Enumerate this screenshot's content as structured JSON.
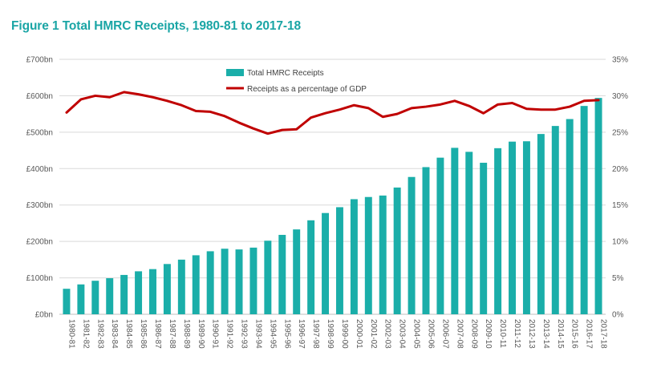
{
  "title": "Figure 1 Total HMRC Receipts, 1980-81 to 2017-18",
  "colors": {
    "title": "#1aa5a5",
    "bars": "#1aaea9",
    "line": "#c00000",
    "grid": "#d9d9d9",
    "axis_text": "#595959"
  },
  "chart_data": {
    "type": "bar",
    "title": "Figure 1 Total HMRC Receipts, 1980-81 to 2017-18",
    "xlabel": "",
    "ylabel": "",
    "categories": [
      "1980-81",
      "1981-82",
      "1982-83",
      "1983-84",
      "1984-85",
      "1985-86",
      "1986-87",
      "1987-88",
      "1988-89",
      "1989-90",
      "1990-91",
      "1991-92",
      "1992-93",
      "1993-94",
      "1994-95",
      "1995-96",
      "1996-97",
      "1997-98",
      "1998-99",
      "1999-00",
      "2000-01",
      "2001-02",
      "2002-03",
      "2003-04",
      "2004-05",
      "2005-06",
      "2006-07",
      "2007-08",
      "2008-09",
      "2009-10",
      "2010-11",
      "2011-12",
      "2012-13",
      "2013-14",
      "2014-15",
      "2015-16",
      "2016-17",
      "2017-18"
    ],
    "y_ticks": [
      "£0bn",
      "£100bn",
      "£200bn",
      "£300bn",
      "£400bn",
      "£500bn",
      "£600bn",
      "£700bn"
    ],
    "y2_ticks": [
      "0%",
      "5%",
      "10%",
      "15%",
      "20%",
      "25%",
      "30%",
      "35%"
    ],
    "ylim": [
      0,
      700
    ],
    "y2lim": [
      0,
      35
    ],
    "grid": true,
    "legend_position": "top-center",
    "series": [
      {
        "name": "Total HMRC Receipts",
        "type": "bar",
        "axis": "left",
        "color": "#1aaea9",
        "values": [
          70,
          82,
          92,
          99,
          108,
          118,
          124,
          138,
          150,
          162,
          173,
          180,
          178,
          183,
          202,
          218,
          233,
          258,
          278,
          294,
          316,
          322,
          326,
          348,
          377,
          404,
          430,
          457,
          446,
          416,
          456,
          474,
          475,
          495,
          517,
          536,
          572,
          594
        ]
      },
      {
        "name": "Receipts as a percentage of GDP",
        "type": "line",
        "axis": "right",
        "color": "#c00000",
        "values": [
          27.7,
          29.5,
          30.0,
          29.8,
          30.5,
          30.2,
          29.8,
          29.3,
          28.7,
          27.9,
          27.8,
          27.2,
          26.3,
          25.5,
          24.8,
          25.3,
          25.4,
          27.0,
          27.6,
          28.1,
          28.7,
          28.3,
          27.1,
          27.5,
          28.3,
          28.5,
          28.8,
          29.3,
          28.6,
          27.6,
          28.8,
          29.0,
          28.2,
          28.1,
          28.1,
          28.5,
          29.3,
          29.4
        ]
      }
    ]
  }
}
